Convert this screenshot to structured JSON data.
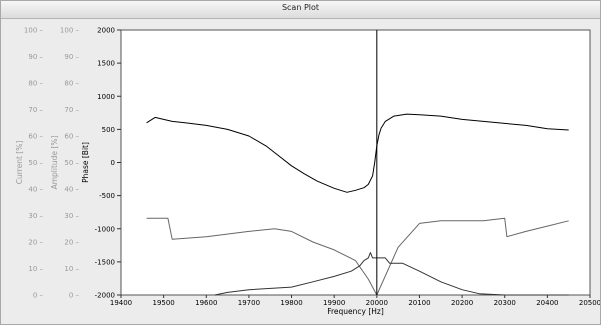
{
  "window": {
    "title": "Scan Plot"
  },
  "chart_data": {
    "type": "line",
    "title": "Scan Plot",
    "xlabel": "Frequency [Hz]",
    "xlim": [
      19400,
      20500
    ],
    "x_ticks": [
      19400,
      19500,
      19600,
      19700,
      19800,
      19900,
      20000,
      20100,
      20200,
      20300,
      20400,
      20500
    ],
    "cursor_x": 20000,
    "axes": [
      {
        "key": "current",
        "label": "Current [%]",
        "ylim": [
          0,
          100
        ],
        "ticks": [
          0,
          10,
          20,
          30,
          40,
          50,
          60,
          70,
          80,
          90,
          100
        ],
        "color": "#999999"
      },
      {
        "key": "amplitude",
        "label": "Amplitude [%]",
        "ylim": [
          0,
          100
        ],
        "ticks": [
          0,
          10,
          20,
          30,
          40,
          50,
          60,
          70,
          80,
          90,
          100
        ],
        "color": "#999999"
      },
      {
        "key": "phase",
        "label": "Phase [Bit]",
        "ylim": [
          -2000,
          2000
        ],
        "ticks": [
          -2000,
          -1500,
          -1000,
          -500,
          0,
          500,
          1000,
          1500,
          2000
        ],
        "color": "#000000"
      }
    ],
    "series": [
      {
        "axis": "phase",
        "color": "#000000",
        "x": [
          19460,
          19480,
          19500,
          19520,
          19550,
          19600,
          19650,
          19700,
          19740,
          19770,
          19800,
          19830,
          19860,
          19900,
          19930,
          19950,
          19970,
          19980,
          19990,
          19995,
          20000,
          20005,
          20010,
          20020,
          20040,
          20070,
          20100,
          20150,
          20200,
          20250,
          20300,
          20350,
          20400,
          20450
        ],
        "y": [
          600,
          680,
          650,
          620,
          600,
          560,
          500,
          400,
          250,
          100,
          -50,
          -170,
          -280,
          -390,
          -450,
          -420,
          -380,
          -330,
          -200,
          0,
          250,
          420,
          520,
          620,
          700,
          730,
          720,
          700,
          650,
          620,
          590,
          560,
          510,
          490
        ]
      },
      {
        "axis": "current",
        "color": "#666666",
        "x": [
          19460,
          19500,
          19510,
          19520,
          19600,
          19700,
          19760,
          19800,
          19850,
          19900,
          19950,
          19980,
          20000,
          20050,
          20100,
          20150,
          20200,
          20250,
          20300,
          20305,
          20350,
          20400,
          20450
        ],
        "y": [
          29,
          29,
          29,
          21,
          22,
          24,
          25,
          24,
          20,
          17,
          13,
          6,
          0,
          18,
          27,
          28,
          28,
          28,
          29,
          22,
          24,
          26,
          28
        ]
      },
      {
        "axis": "amplitude",
        "color": "#333333",
        "x": [
          19620,
          19650,
          19700,
          19800,
          19850,
          19900,
          19940,
          19960,
          19970,
          19980,
          19985,
          19990,
          20000,
          20010,
          20020,
          20030,
          20060,
          20100,
          20150,
          20200,
          20240,
          20300,
          20450
        ],
        "y": [
          0,
          1,
          2,
          3,
          5,
          7,
          9,
          11,
          13,
          14,
          16,
          14,
          14,
          14,
          14,
          12,
          12,
          9,
          5,
          2,
          0.5,
          0,
          0
        ]
      }
    ]
  }
}
